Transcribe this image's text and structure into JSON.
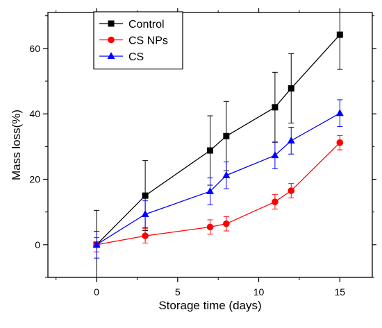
{
  "chart_data": {
    "type": "line",
    "title": "",
    "xlabel": "Storage time (days)",
    "ylabel": "Mass loss(%)",
    "xlim": [
      -3,
      17
    ],
    "ylim": [
      -10,
      71
    ],
    "x_ticks": [
      0,
      5,
      10,
      15
    ],
    "x_tick_labels": [
      "0",
      "5",
      "10",
      "15"
    ],
    "y_ticks": [
      0,
      20,
      40,
      60
    ],
    "y_tick_labels": [
      "0",
      "20",
      "40",
      "60"
    ],
    "grid": false,
    "legend_position": "top-left",
    "x": [
      0,
      3,
      7,
      8,
      11,
      12,
      15
    ],
    "series": [
      {
        "name": "Control",
        "color": "#000000",
        "marker": "square",
        "values": [
          0,
          15,
          28.8,
          33.2,
          42,
          47.8,
          64.2
        ],
        "errors": [
          10.5,
          10.7,
          10.6,
          10.6,
          10.7,
          10.6,
          10.6
        ]
      },
      {
        "name": "CS NPs",
        "color": "#ff0000",
        "marker": "circle",
        "values": [
          0,
          2.7,
          5.4,
          6.4,
          13.1,
          16.5,
          31.2
        ],
        "errors": [
          2.2,
          2.2,
          2.2,
          2.2,
          2.2,
          2.2,
          2.2
        ]
      },
      {
        "name": "CS",
        "color": "#0000ff",
        "marker": "triangle",
        "values": [
          0,
          9.3,
          16.3,
          21.2,
          27.3,
          31.8,
          40.2
        ],
        "errors": [
          4.1,
          4.1,
          4.1,
          4.1,
          4.1,
          4.1,
          4.1
        ]
      }
    ]
  }
}
